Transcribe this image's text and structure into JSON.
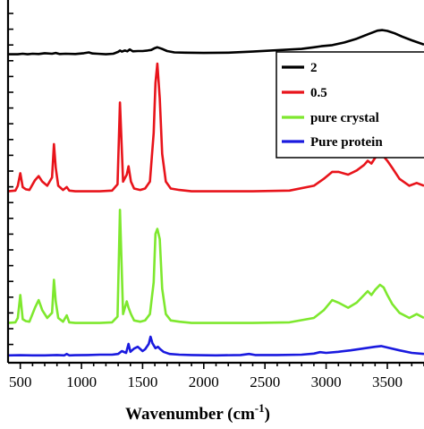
{
  "chart_data": {
    "type": "line",
    "xlabel": "Wavenumber (cm",
    "xlabel_sup": "-1",
    "xlabel_close": ")",
    "xlim": [
      400,
      3800
    ],
    "x_ticks": [
      500,
      1000,
      1500,
      2000,
      2500,
      3000,
      3500
    ],
    "x_tick_labels": [
      "500",
      "1000",
      "1500",
      "2000",
      "2500",
      "3000",
      "3500"
    ],
    "y_axis_numeric_labels": false,
    "grid": false,
    "legend_position": "top-right",
    "series": [
      {
        "name": "2",
        "color": "#000000",
        "baseline": 0.09,
        "x": [
          400,
          480,
          520,
          560,
          600,
          650,
          700,
          760,
          790,
          820,
          870,
          950,
          1020,
          1060,
          1090,
          1130,
          1200,
          1260,
          1300,
          1315,
          1330,
          1355,
          1375,
          1395,
          1420,
          1460,
          1500,
          1540,
          1570,
          1600,
          1620,
          1640,
          1665,
          1700,
          1760,
          1850,
          2000,
          2200,
          2400,
          2600,
          2800,
          2900,
          2960,
          3050,
          3150,
          3250,
          3350,
          3420,
          3460,
          3500,
          3560,
          3620,
          3700,
          3800
        ],
        "y": [
          0.09,
          0.09,
          0.1,
          0.09,
          0.1,
          0.095,
          0.11,
          0.1,
          0.115,
          0.095,
          0.1,
          0.095,
          0.11,
          0.125,
          0.105,
          0.1,
          0.09,
          0.1,
          0.135,
          0.16,
          0.14,
          0.16,
          0.145,
          0.18,
          0.145,
          0.15,
          0.15,
          0.16,
          0.17,
          0.205,
          0.22,
          0.205,
          0.185,
          0.15,
          0.125,
          0.12,
          0.115,
          0.12,
          0.14,
          0.165,
          0.19,
          0.22,
          0.24,
          0.26,
          0.31,
          0.38,
          0.47,
          0.53,
          0.54,
          0.525,
          0.48,
          0.42,
          0.35,
          0.27
        ]
      },
      {
        "name": "0.5",
        "color": "#e8141b",
        "baseline": 0.08,
        "x": [
          400,
          460,
          480,
          500,
          520,
          545,
          575,
          620,
          650,
          680,
          720,
          760,
          775,
          790,
          810,
          850,
          880,
          900,
          950,
          1060,
          1150,
          1250,
          1295,
          1315,
          1340,
          1370,
          1385,
          1405,
          1430,
          1480,
          1520,
          1560,
          1590,
          1605,
          1620,
          1640,
          1660,
          1690,
          1730,
          1800,
          1900,
          2100,
          2400,
          2700,
          2900,
          2980,
          3050,
          3100,
          3180,
          3250,
          3310,
          3340,
          3370,
          3400,
          3440,
          3470,
          3500,
          3540,
          3600,
          3680,
          3740,
          3800
        ],
        "y": [
          0.08,
          0.085,
          0.12,
          0.21,
          0.11,
          0.095,
          0.09,
          0.16,
          0.19,
          0.15,
          0.12,
          0.18,
          0.42,
          0.25,
          0.12,
          0.09,
          0.11,
          0.085,
          0.08,
          0.08,
          0.08,
          0.085,
          0.13,
          0.72,
          0.15,
          0.2,
          0.26,
          0.15,
          0.1,
          0.09,
          0.1,
          0.15,
          0.5,
          0.86,
          1.0,
          0.75,
          0.35,
          0.15,
          0.1,
          0.09,
          0.08,
          0.08,
          0.08,
          0.085,
          0.12,
          0.17,
          0.22,
          0.22,
          0.2,
          0.23,
          0.27,
          0.3,
          0.28,
          0.32,
          0.35,
          0.33,
          0.3,
          0.25,
          0.17,
          0.12,
          0.14,
          0.12
        ]
      },
      {
        "name": "pure crystal",
        "color": "#7ee82e",
        "baseline": 0.08,
        "x": [
          400,
          460,
          480,
          500,
          520,
          545,
          575,
          620,
          650,
          680,
          720,
          760,
          775,
          790,
          810,
          850,
          880,
          900,
          950,
          1060,
          1150,
          1250,
          1295,
          1315,
          1340,
          1370,
          1385,
          1405,
          1430,
          1480,
          1520,
          1560,
          1590,
          1605,
          1620,
          1640,
          1660,
          1690,
          1730,
          1800,
          1900,
          2100,
          2400,
          2700,
          2900,
          2980,
          3050,
          3100,
          3180,
          3250,
          3310,
          3340,
          3370,
          3400,
          3440,
          3470,
          3500,
          3540,
          3600,
          3680,
          3740,
          3800
        ],
        "y": [
          0.08,
          0.085,
          0.12,
          0.3,
          0.11,
          0.095,
          0.09,
          0.2,
          0.26,
          0.18,
          0.12,
          0.16,
          0.42,
          0.25,
          0.12,
          0.09,
          0.14,
          0.085,
          0.08,
          0.08,
          0.08,
          0.085,
          0.13,
          0.97,
          0.15,
          0.25,
          0.2,
          0.15,
          0.1,
          0.09,
          0.1,
          0.15,
          0.4,
          0.78,
          0.82,
          0.74,
          0.35,
          0.15,
          0.1,
          0.09,
          0.08,
          0.08,
          0.08,
          0.085,
          0.12,
          0.18,
          0.26,
          0.24,
          0.2,
          0.24,
          0.3,
          0.33,
          0.3,
          0.34,
          0.38,
          0.36,
          0.3,
          0.23,
          0.16,
          0.12,
          0.15,
          0.12
        ]
      },
      {
        "name": "Pure protein",
        "color": "#1a1adf",
        "baseline": 0.08,
        "x": [
          400,
          500,
          600,
          700,
          800,
          860,
          880,
          900,
          950,
          1050,
          1150,
          1250,
          1300,
          1330,
          1365,
          1385,
          1400,
          1430,
          1460,
          1500,
          1520,
          1550,
          1565,
          1580,
          1605,
          1625,
          1645,
          1670,
          1720,
          1800,
          1900,
          2100,
          2300,
          2370,
          2420,
          2600,
          2800,
          2900,
          2950,
          3000,
          3100,
          3200,
          3300,
          3400,
          3450,
          3500,
          3600,
          3700,
          3800
        ],
        "y": [
          0.08,
          0.085,
          0.08,
          0.08,
          0.09,
          0.08,
          0.12,
          0.08,
          0.085,
          0.09,
          0.1,
          0.1,
          0.12,
          0.2,
          0.15,
          0.4,
          0.18,
          0.27,
          0.32,
          0.2,
          0.25,
          0.4,
          0.6,
          0.42,
          0.28,
          0.32,
          0.25,
          0.18,
          0.12,
          0.1,
          0.09,
          0.08,
          0.09,
          0.12,
          0.09,
          0.09,
          0.1,
          0.13,
          0.17,
          0.15,
          0.18,
          0.22,
          0.27,
          0.32,
          0.34,
          0.3,
          0.22,
          0.15,
          0.12
        ]
      }
    ]
  }
}
